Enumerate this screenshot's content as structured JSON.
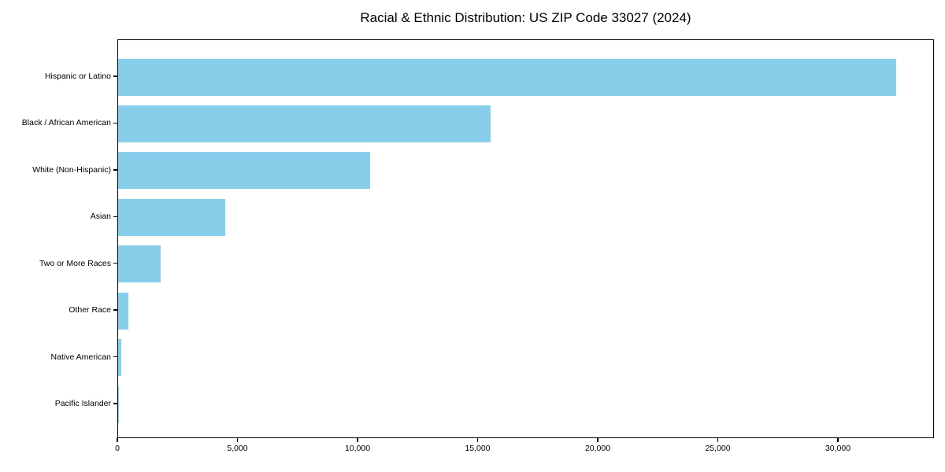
{
  "chart_data": {
    "type": "bar",
    "orientation": "horizontal",
    "title": "Racial & Ethnic Distribution: US ZIP Code 33027 (2024)",
    "categories": [
      "Hispanic or Latino",
      "Black / African American",
      "White (Non-Hispanic)",
      "Asian",
      "Two or More Races",
      "Other Race",
      "Native American",
      "Pacific Islander"
    ],
    "values": [
      32400,
      15500,
      10500,
      4450,
      1780,
      410,
      120,
      25
    ],
    "xlabel": "",
    "ylabel": "",
    "xlim": [
      0,
      34000
    ],
    "x_ticks": [
      0,
      5000,
      10000,
      15000,
      20000,
      25000,
      30000
    ],
    "x_tick_labels": [
      "0",
      "5,000",
      "10,000",
      "15,000",
      "20,000",
      "25,000",
      "30,000"
    ],
    "grid": false,
    "legend": null,
    "bar_color": "#87ceeb",
    "axis_color": "#000000",
    "background_color": "#ffffff",
    "text_color": "#000000"
  }
}
